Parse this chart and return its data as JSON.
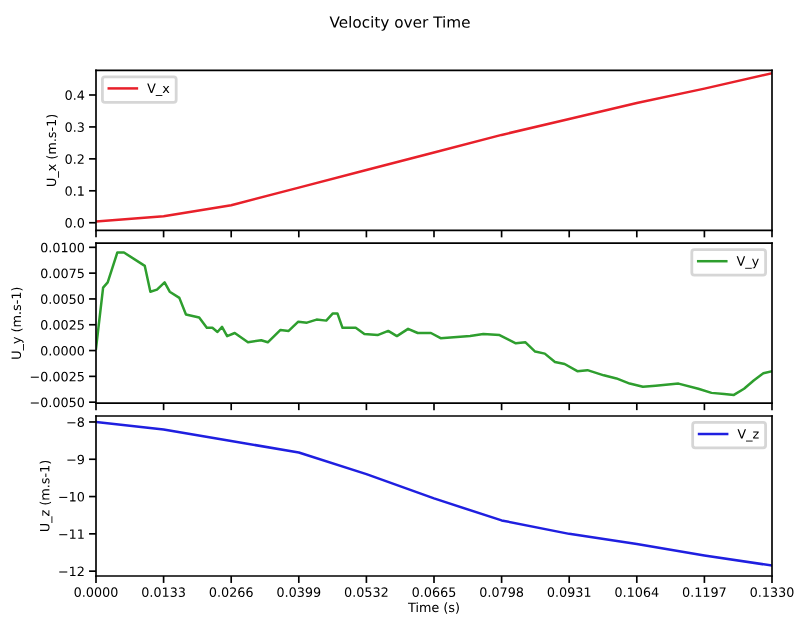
{
  "chart_data": [
    {
      "type": "line",
      "title": "Velocity over Time",
      "ylabel": "U_x (m.s-1)",
      "legend": "top left",
      "grid": false,
      "tick_labels": "y",
      "xlim": [
        0,
        0.133
      ],
      "ylim": [
        -0.024,
        0.477
      ],
      "xticks": [
        {
          "value": 0,
          "label": null
        },
        {
          "value": 0.0133,
          "label": null
        },
        {
          "value": 0.0266,
          "label": null
        },
        {
          "value": 0.0399,
          "label": null
        },
        {
          "value": 0.0532,
          "label": null
        },
        {
          "value": 0.0665,
          "label": null
        },
        {
          "value": 0.0798,
          "label": null
        },
        {
          "value": 0.0931,
          "label": null
        },
        {
          "value": 0.1064,
          "label": null
        },
        {
          "value": 0.1197,
          "label": null
        },
        {
          "value": 0.133,
          "label": null
        }
      ],
      "yticks": [
        {
          "value": 0,
          "label": "0.0"
        },
        {
          "value": 0.1,
          "label": "0.1"
        },
        {
          "value": 0.2,
          "label": "0.2"
        },
        {
          "value": 0.3,
          "label": "0.3"
        },
        {
          "value": 0.4,
          "label": "0.4"
        }
      ],
      "x": [
        0,
        0.0133,
        0.0266,
        0.0399,
        0.0532,
        0.0665,
        0.0798,
        0.0931,
        0.1064,
        0.1197,
        0.133
      ],
      "series": [
        {
          "name": "V_x",
          "color": "#e8202a",
          "values": [
            0.004,
            0.02,
            0.055,
            0.11,
            0.165,
            0.22,
            0.275,
            0.325,
            0.375,
            0.42,
            0.468
          ]
        }
      ]
    },
    {
      "type": "line",
      "ylabel": "U_y (m.s-1)",
      "legend": "top right",
      "grid": false,
      "tick_labels": "y",
      "xlim": [
        0,
        0.133
      ],
      "ylim": [
        -0.0051,
        0.0104
      ],
      "xticks": [
        {
          "value": 0,
          "label": null
        },
        {
          "value": 0.0133,
          "label": null
        },
        {
          "value": 0.0266,
          "label": null
        },
        {
          "value": 0.0399,
          "label": null
        },
        {
          "value": 0.0532,
          "label": null
        },
        {
          "value": 0.0665,
          "label": null
        },
        {
          "value": 0.0798,
          "label": null
        },
        {
          "value": 0.0931,
          "label": null
        },
        {
          "value": 0.1064,
          "label": null
        },
        {
          "value": 0.1197,
          "label": null
        },
        {
          "value": 0.133,
          "label": null
        }
      ],
      "yticks": [
        {
          "value": -0.005,
          "label": "−0.0050"
        },
        {
          "value": -0.0025,
          "label": "−0.0025"
        },
        {
          "value": 0,
          "label": "0.0000"
        },
        {
          "value": 0.0025,
          "label": "0.0025"
        },
        {
          "value": 0.005,
          "label": "0.0050"
        },
        {
          "value": 0.0075,
          "label": "0.0075"
        },
        {
          "value": 0.01,
          "label": "0.0100"
        }
      ],
      "x": [
        0,
        0.0014,
        0.0023,
        0.0042,
        0.0055,
        0.0096,
        0.0107,
        0.012,
        0.0135,
        0.0145,
        0.0164,
        0.0177,
        0.0203,
        0.0218,
        0.0229,
        0.0239,
        0.0248,
        0.0258,
        0.0273,
        0.0299,
        0.0325,
        0.0338,
        0.0363,
        0.0379,
        0.0398,
        0.0415,
        0.0434,
        0.0453,
        0.0466,
        0.0475,
        0.0485,
        0.0511,
        0.0528,
        0.0554,
        0.0575,
        0.0592,
        0.0614,
        0.0633,
        0.0659,
        0.0678,
        0.0736,
        0.0762,
        0.0794,
        0.0826,
        0.0845,
        0.0864,
        0.0883,
        0.0903,
        0.0922,
        0.0947,
        0.0967,
        0.0999,
        0.1024,
        0.105,
        0.1076,
        0.1101,
        0.1146,
        0.1185,
        0.1211,
        0.1236,
        0.1255,
        0.1275,
        0.1294,
        0.1313,
        0.133
      ],
      "series": [
        {
          "name": "V_y",
          "color": "#2e9e2e",
          "values": [
            0.0002,
            0.0061,
            0.0066,
            0.0095,
            0.0095,
            0.0082,
            0.0057,
            0.0059,
            0.0066,
            0.0057,
            0.0051,
            0.0035,
            0.0032,
            0.0022,
            0.0022,
            0.0018,
            0.0023,
            0.0014,
            0.0017,
            0.0008,
            0.001,
            0.0008,
            0.002,
            0.0019,
            0.0028,
            0.0027,
            0.003,
            0.0029,
            0.0036,
            0.0036,
            0.0022,
            0.0022,
            0.0016,
            0.0015,
            0.0019,
            0.0014,
            0.0021,
            0.0017,
            0.0017,
            0.0012,
            0.0014,
            0.0016,
            0.0015,
            0.0007,
            0.0008,
            -0.0001,
            -0.0003,
            -0.0011,
            -0.0013,
            -0.002,
            -0.0019,
            -0.0024,
            -0.0027,
            -0.0032,
            -0.0035,
            -0.0034,
            -0.0032,
            -0.0037,
            -0.0041,
            -0.0042,
            -0.0043,
            -0.0037,
            -0.0029,
            -0.0022,
            -0.002
          ]
        }
      ]
    },
    {
      "type": "line",
      "ylabel": "U_z (m.s-1)",
      "xlabel": "Time (s)",
      "legend": "top right",
      "grid": false,
      "xlim": [
        0,
        0.133
      ],
      "ylim": [
        -12.13,
        -7.84
      ],
      "xticks": [
        {
          "value": 0,
          "label": "0.0000"
        },
        {
          "value": 0.0133,
          "label": "0.0133"
        },
        {
          "value": 0.0266,
          "label": "0.0266"
        },
        {
          "value": 0.0399,
          "label": "0.0399"
        },
        {
          "value": 0.0532,
          "label": "0.0532"
        },
        {
          "value": 0.0665,
          "label": "0.0665"
        },
        {
          "value": 0.0798,
          "label": "0.0798"
        },
        {
          "value": 0.0931,
          "label": "0.0931"
        },
        {
          "value": 0.1064,
          "label": "0.1064"
        },
        {
          "value": 0.1197,
          "label": "0.1197"
        },
        {
          "value": 0.133,
          "label": "0.1330"
        }
      ],
      "yticks": [
        {
          "value": -12,
          "label": "−12"
        },
        {
          "value": -11,
          "label": "−11"
        },
        {
          "value": -10,
          "label": "−10"
        },
        {
          "value": -9,
          "label": "−9"
        },
        {
          "value": -8,
          "label": "−8"
        }
      ],
      "x": [
        0,
        0.0133,
        0.0266,
        0.0399,
        0.0532,
        0.0665,
        0.0798,
        0.0931,
        0.1064,
        0.1197,
        0.133
      ],
      "series": [
        {
          "name": "V_z",
          "color": "#1f1fe0",
          "values": [
            -8.0,
            -8.2,
            -8.51,
            -8.82,
            -9.4,
            -10.05,
            -10.64,
            -11.0,
            -11.27,
            -11.58,
            -11.85
          ]
        }
      ]
    }
  ]
}
